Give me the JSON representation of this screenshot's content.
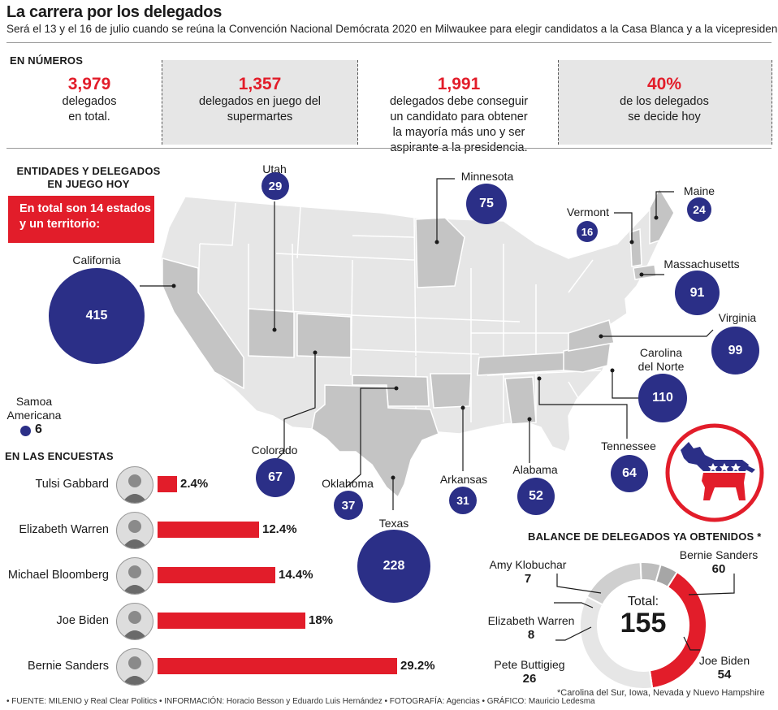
{
  "header": {
    "title": "La carrera por los delegados",
    "subtitle": "Será el 13 y el 16 de julio cuando se reúna la Convención Nacional Demócrata 2020 en Milwaukee para elegir candidatos a la Casa Blanca y a la vicepresidencia."
  },
  "numeros": {
    "heading": "EN NÚMEROS",
    "items": [
      {
        "value": "3,979",
        "text1": "delegados",
        "text2": "en total."
      },
      {
        "value": "1,357",
        "text1": "delegados en juego del",
        "text2": "supermartes"
      },
      {
        "value": "1,991",
        "text1": "delegados debe conseguir",
        "text2": "un candidato para obtener",
        "text3": "la mayoría más uno y ser",
        "text4": "aspirante a la presidencia."
      },
      {
        "value": "40%",
        "text1": "de los delegados",
        "text2": "se decide hoy"
      }
    ]
  },
  "entidades": {
    "heading1": "ENTIDADES Y DELEGADOS",
    "heading2": "EN JUEGO HOY",
    "box1": "En total son 14 estados",
    "box2": "y un territorio:"
  },
  "states": [
    {
      "name": "California",
      "delegates": 415
    },
    {
      "name": "Utah",
      "delegates": 29
    },
    {
      "name": "Minnesota",
      "delegates": 75
    },
    {
      "name": "Vermont",
      "delegates": 16
    },
    {
      "name": "Maine",
      "delegates": 24
    },
    {
      "name": "Massachusetts",
      "delegates": 91
    },
    {
      "name": "Virginia",
      "delegates": 99
    },
    {
      "name1": "Carolina",
      "name2": "del Norte",
      "delegates": 110
    },
    {
      "name1": "Samoa",
      "name2": "Americana",
      "delegates": 6
    },
    {
      "name": "Colorado",
      "delegates": 67
    },
    {
      "name": "Oklahoma",
      "delegates": 37
    },
    {
      "name": "Texas",
      "delegates": 228
    },
    {
      "name": "Arkansas",
      "delegates": 31
    },
    {
      "name": "Alabama",
      "delegates": 52
    },
    {
      "name": "Tennessee",
      "delegates": 64
    }
  ],
  "encuestas": {
    "heading": "EN LAS ENCUESTAS",
    "candidates": [
      {
        "name": "Tulsi Gabbard",
        "value": 2.4,
        "label": "2.4%"
      },
      {
        "name": "Elizabeth Warren",
        "value": 12.4,
        "label": "12.4%"
      },
      {
        "name": "Michael Bloomberg",
        "value": 14.4,
        "label": "14.4%"
      },
      {
        "name": "Joe Biden",
        "value": 18,
        "label": "18%"
      },
      {
        "name": "Bernie Sanders",
        "value": 29.2,
        "label": "29.2%"
      }
    ]
  },
  "chart_data": {
    "type": "pie",
    "title": "BALANCE DE DELEGADOS YA OBTENIDOS *",
    "center_label": "Total:",
    "center_value": "155",
    "slices": [
      {
        "name": "Bernie Sanders",
        "value": 60,
        "color": "#e21d2a"
      },
      {
        "name": "Joe Biden",
        "value": 54,
        "color": "#e6e6e6"
      },
      {
        "name": "Pete Buttigieg",
        "value": 26,
        "color": "#cfcfcf"
      },
      {
        "name": "Elizabeth Warren",
        "value": 8,
        "color": "#bdbdbd"
      },
      {
        "name": "Amy Klobuchar",
        "value": 7,
        "color": "#a6a6a6"
      }
    ],
    "note": "*Carolina del Sur, Iowa, Nevada y Nuevo Hampshire"
  },
  "footer": "• FUENTE: MILENIO y Real Clear Politics • INFORMACIÓN: Horacio Besson y Eduardo Luis Hernández • FOTOGRAFÍA: Agencias • GRÁFICO: Mauricio Ledesma",
  "colors": {
    "accent": "#e21d2a",
    "navy": "#2b2f87",
    "map_light": "#e6e6e6",
    "map_dark": "#c4c4c4"
  }
}
